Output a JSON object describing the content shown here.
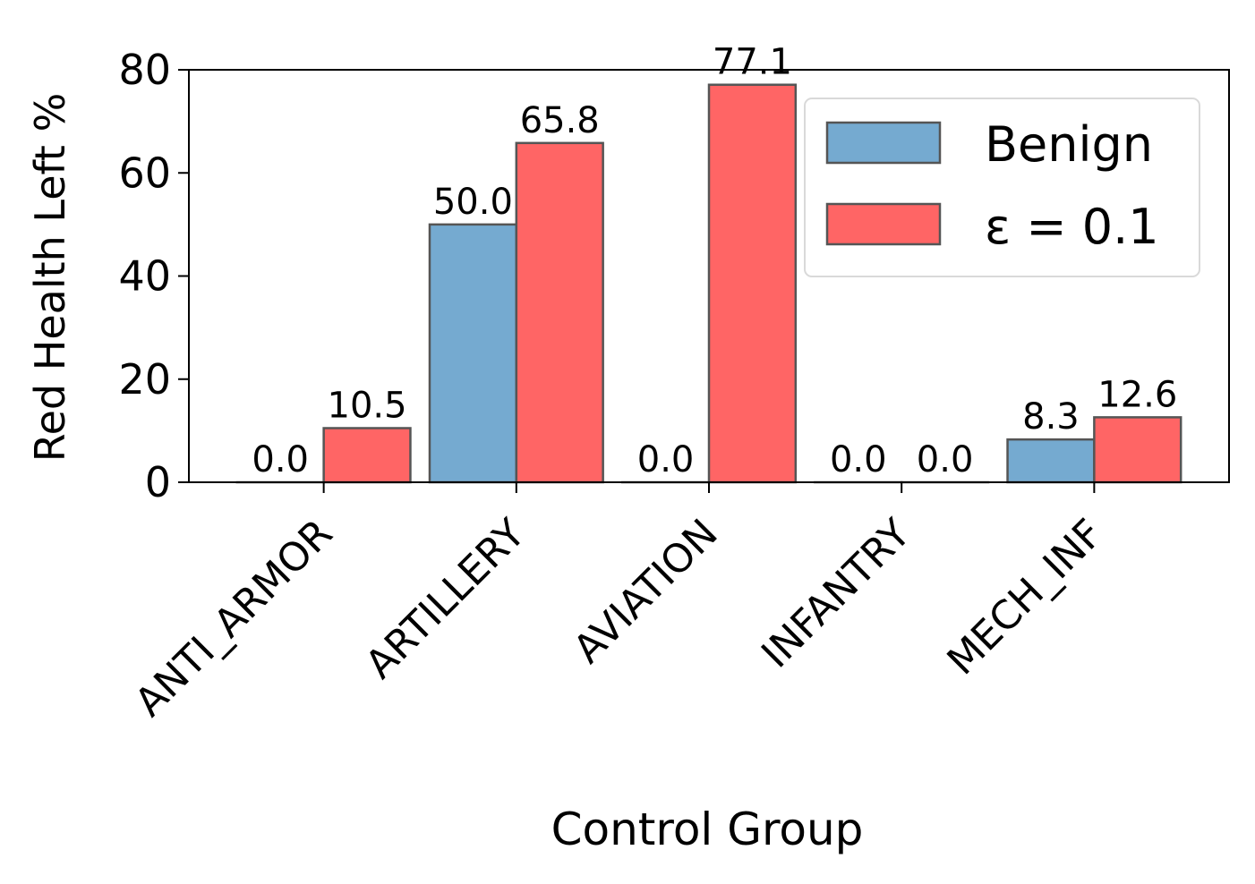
{
  "chart_data": {
    "type": "bar",
    "title": "",
    "xlabel": "Control Group",
    "ylabel": "Red Health Left %",
    "categories": [
      "ANTI_ARMOR",
      "ARTILLERY",
      "AVIATION",
      "INFANTRY",
      "MECH_INF"
    ],
    "series": [
      {
        "name": "Benign",
        "color": "#75aad0",
        "values": [
          0.0,
          50.0,
          0.0,
          0.0,
          8.3
        ],
        "labels": [
          "0.0",
          "50.0",
          "0.0",
          "0.0",
          "8.3"
        ]
      },
      {
        "name": "ε = 0.1",
        "color": "#ff6565",
        "values": [
          10.5,
          65.8,
          77.1,
          0.0,
          12.6
        ],
        "labels": [
          "10.5",
          "65.8",
          "77.1",
          "0.0",
          "12.6"
        ]
      }
    ],
    "ylim": [
      0,
      80
    ],
    "yticks": [
      0,
      20,
      40,
      60,
      80
    ],
    "ytick_labels": [
      "0",
      "20",
      "40",
      "60",
      "80"
    ],
    "grid": false,
    "legend_position": "top-right",
    "legend_labels": [
      "Benign",
      "ε = 0.1"
    ]
  }
}
